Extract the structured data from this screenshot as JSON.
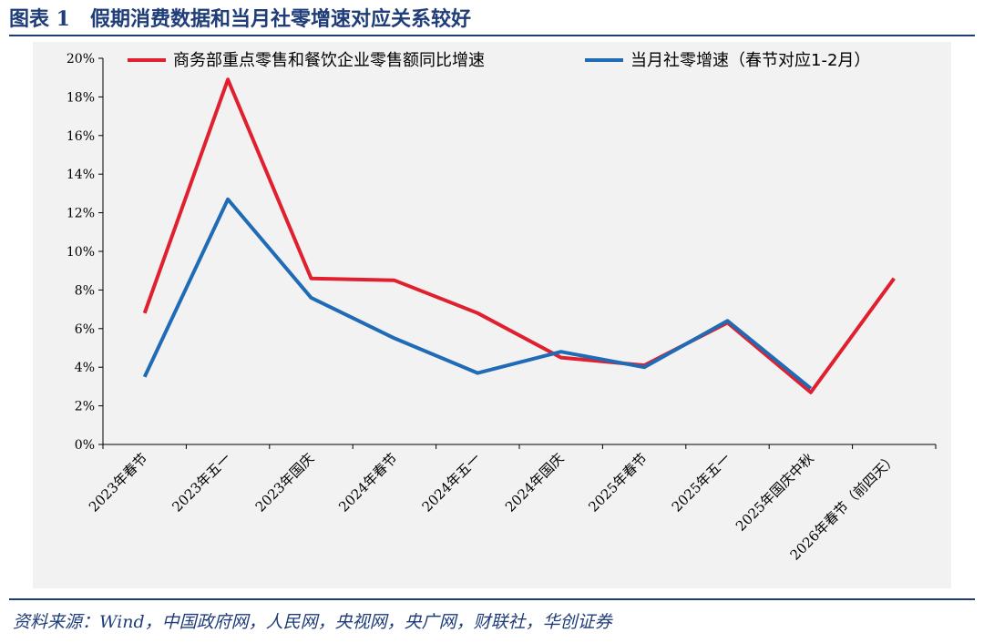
{
  "header": {
    "title": "图表 1　假期消费数据和当月社零增速对应关系较好"
  },
  "source": "资料来源：Wind，中国政府网，人民网，央视网，央广网，财联社，华创证券",
  "colors": {
    "accent": "#1F3D78",
    "series_red": "#E0202E",
    "series_blue": "#1F6BB5",
    "panel_bg": "#F2F2F2"
  },
  "chart_data": {
    "type": "line",
    "title": "",
    "xlabel": "",
    "ylabel": "",
    "categories": [
      "2023年春节",
      "2023年五一",
      "2023年国庆",
      "2024年春节",
      "2024年五一",
      "2024年国庆",
      "2025年春节",
      "2025年五一",
      "2025年国庆中秋",
      "2026年春节（前四天）"
    ],
    "y_tick_labels": [
      "0%",
      "2%",
      "4%",
      "6%",
      "8%",
      "10%",
      "12%",
      "14%",
      "16%",
      "18%",
      "20%"
    ],
    "ylim": [
      0,
      20
    ],
    "y_unit": "%",
    "grid": false,
    "legend_position": "top",
    "series": [
      {
        "name": "商务部重点零售和餐饮企业零售额同比增速",
        "color": "#E0202E",
        "values": [
          6.8,
          18.9,
          8.6,
          8.5,
          6.8,
          4.5,
          4.1,
          6.3,
          2.7,
          8.6
        ]
      },
      {
        "name": "当月社零增速（春节对应1-2月）",
        "color": "#1F6BB5",
        "values": [
          3.5,
          12.7,
          7.6,
          5.5,
          3.7,
          4.8,
          4.0,
          6.4,
          2.9,
          null
        ]
      }
    ]
  }
}
